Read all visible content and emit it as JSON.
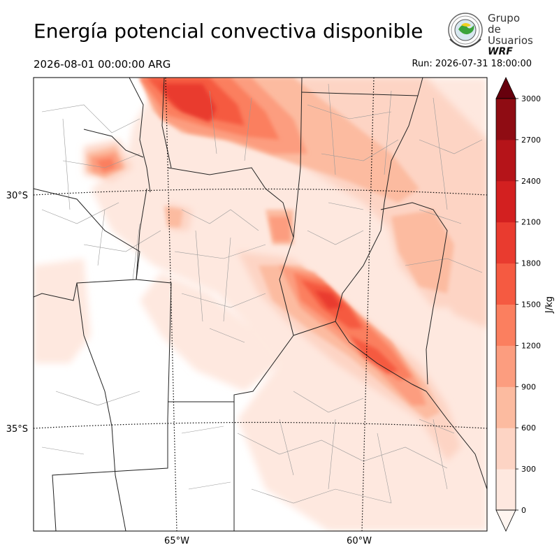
{
  "header": {
    "title": "Energía potencial convectiva disponible",
    "valid_time": "2026-08-01 00:00:00 ARG",
    "run_time": "Run: 2026-07-31 18:00:00"
  },
  "logo": {
    "line1": "Grupo de",
    "line2": "Usuarios",
    "line3": "WRF"
  },
  "map": {
    "lat_labels": [
      "30°S",
      "35°S"
    ],
    "lon_labels": [
      "65°W",
      "60°W"
    ]
  },
  "colorbar": {
    "unit_label": "J/kg",
    "ticks": [
      "0",
      "300",
      "600",
      "900",
      "1200",
      "1500",
      "1800",
      "2100",
      "2400",
      "2700",
      "3000"
    ],
    "colors": [
      "#fee8df",
      "#fdd4c4",
      "#fcbba0",
      "#fc9d7f",
      "#fb7f5f",
      "#f55a41",
      "#e93b2f",
      "#d32020",
      "#b51419",
      "#8f0c13",
      "#67000d"
    ]
  }
}
